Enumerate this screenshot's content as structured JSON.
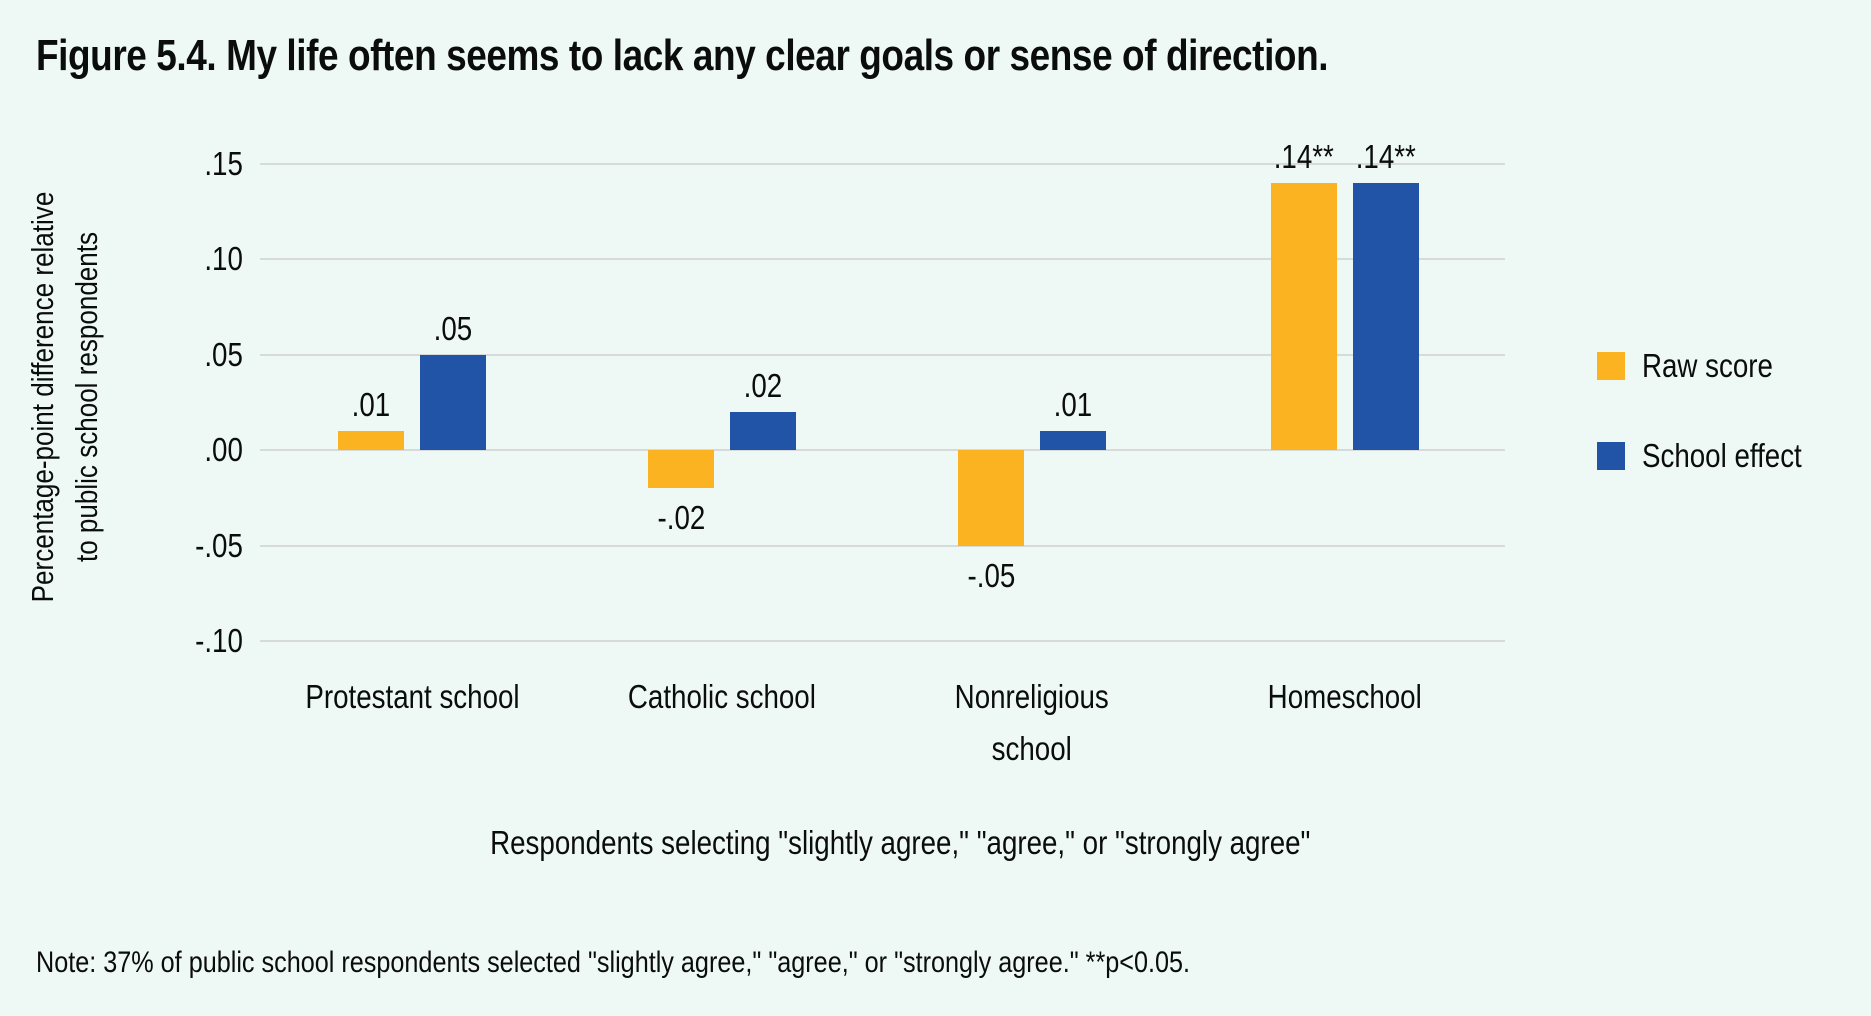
{
  "title": "Figure 5.4. My life often seems to lack any clear goals or sense of direction.",
  "y_axis": {
    "label_line1": "Percentage-point difference relative",
    "label_line2": "to public school respondents",
    "ticks": [
      ".15",
      ".10",
      ".05",
      ".00",
      "-.05",
      "-.10"
    ]
  },
  "x_axis": {
    "caption": "Respondents selecting \"slightly agree,\" \"agree,\" or \"strongly agree\""
  },
  "legend": [
    {
      "label": "Raw score",
      "color": "#FBB322"
    },
    {
      "label": "School effect",
      "color": "#2153A6"
    }
  ],
  "note": "Note: 37% of public school respondents selected \"slightly agree,\" \"agree,\" or \"strongly agree.\" **p<0.05.",
  "colors": {
    "background": "#EEF8F5",
    "gridline": "#D6DBD9",
    "text": "#0B0D0C",
    "raw_score": "#FBB322",
    "school_effect": "#2153A6"
  },
  "chart_data": {
    "type": "bar",
    "categories": [
      "Protestant school",
      "Catholic school",
      "Nonreligious\nschool",
      "Homeschool"
    ],
    "series": [
      {
        "name": "Raw score",
        "values": [
          0.01,
          -0.02,
          -0.05,
          0.14
        ],
        "labels": [
          ".01",
          "-.02",
          "-.05",
          ".14**"
        ],
        "color": "#FBB322"
      },
      {
        "name": "School effect",
        "values": [
          0.05,
          0.02,
          0.01,
          0.14
        ],
        "labels": [
          ".05",
          ".02",
          ".01",
          ".14**"
        ],
        "color": "#2153A6"
      }
    ],
    "tick_values": [
      0.15,
      0.1,
      0.05,
      0.0,
      -0.05,
      -0.1
    ],
    "ylim": [
      -0.1,
      0.15
    ],
    "ytick_step": 0.05,
    "grid": true,
    "legend_position": "right",
    "baseline_note_value": "37%"
  }
}
